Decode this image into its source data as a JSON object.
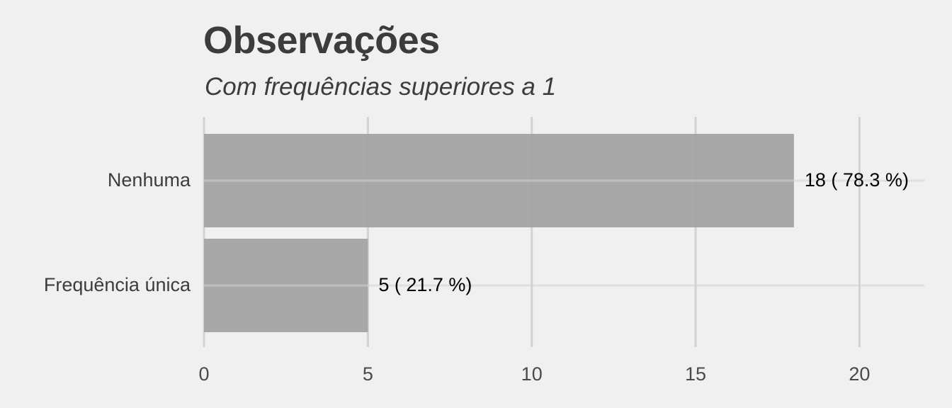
{
  "chart_data": {
    "type": "bar",
    "orientation": "horizontal",
    "title": "Observações",
    "subtitle": "Com frequências superiores a 1",
    "categories": [
      "Nenhuma",
      "Frequência única"
    ],
    "values": [
      18,
      5
    ],
    "data_labels": [
      "18 ( 78.3 %)",
      "5 ( 21.7 %)"
    ],
    "xlabel": "",
    "ylabel": "",
    "xlim": [
      0,
      22
    ],
    "x_ticks": [
      0,
      5,
      10,
      15,
      20
    ],
    "x_tick_labels": [
      "0",
      "5",
      "10",
      "15",
      "20"
    ],
    "grid": true,
    "legend": "none",
    "colors": {
      "background": "#f0f0f0",
      "bar": "#a3a3a3",
      "grid": "#d2d2d2",
      "text": "#3c3c3c"
    }
  }
}
